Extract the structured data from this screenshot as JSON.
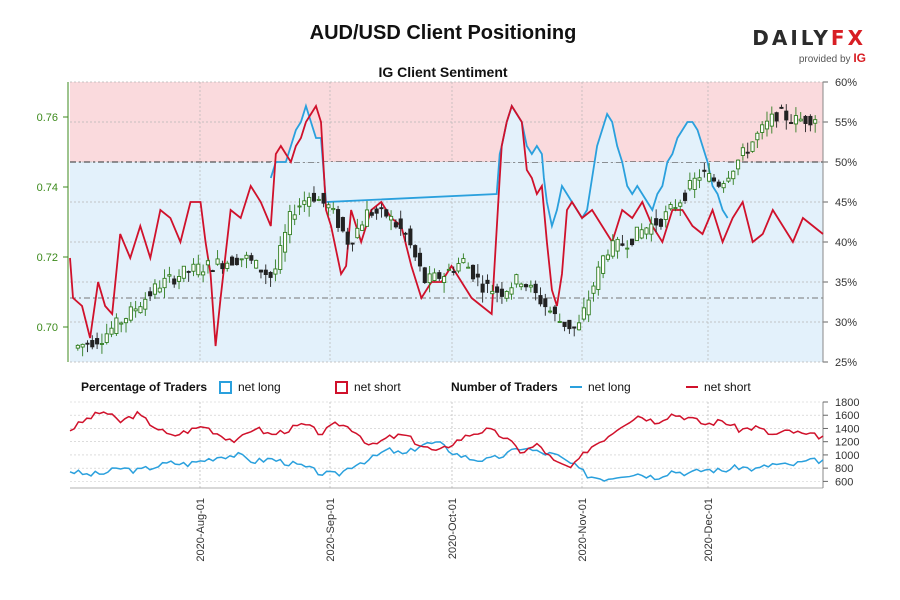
{
  "header": {
    "title": "AUD/USD Client Positioning",
    "subtitle": "IG Client Sentiment",
    "brand_main": "DAILY",
    "brand_fx": "FX",
    "brand_sub": "provided by",
    "brand_ig": "IG"
  },
  "legend": {
    "pct_heading": "Percentage of Traders",
    "num_heading": "Number of Traders",
    "net_long": "net long",
    "net_short": "net short"
  },
  "colors": {
    "net_long": "#2aa0dd",
    "net_short": "#d0112b",
    "short_bg": "#fadadd",
    "long_bg": "#e3f1fb",
    "up_candle": "#2f7d1f",
    "down_candle": "#222222",
    "price_axis": "#3c8a1c"
  },
  "chart_data": [
    {
      "type": "line",
      "title": "IG Client Sentiment",
      "price_axis": {
        "ylim": [
          0.69,
          0.77
        ],
        "ticks": [
          "0.70",
          "0.72",
          "0.74",
          "0.76"
        ]
      },
      "pct_axis": {
        "ylim": [
          25,
          60
        ],
        "ticks": [
          "25%",
          "30%",
          "35%",
          "40%",
          "45%",
          "50%",
          "55%",
          "60%"
        ]
      },
      "x_labels": [
        "2020-Aug-01",
        "2020-Sep-01",
        "2020-Oct-01",
        "2020-Nov-01",
        "2020-Dec-01"
      ],
      "net_short_pct_knots": [
        [
          0,
          38
        ],
        [
          3,
          33
        ],
        [
          12,
          32
        ],
        [
          20,
          28
        ],
        [
          28,
          35
        ],
        [
          35,
          32
        ],
        [
          42,
          31
        ],
        [
          50,
          41
        ],
        [
          60,
          38
        ],
        [
          70,
          42
        ],
        [
          80,
          38
        ],
        [
          90,
          44
        ],
        [
          100,
          43
        ],
        [
          110,
          40
        ],
        [
          120,
          45
        ],
        [
          130,
          45
        ],
        [
          135,
          40
        ],
        [
          140,
          36
        ],
        [
          145,
          27
        ],
        [
          150,
          33
        ],
        [
          160,
          44
        ],
        [
          170,
          43
        ],
        [
          180,
          47
        ],
        [
          190,
          45
        ],
        [
          200,
          42
        ],
        [
          205,
          51
        ],
        [
          210,
          52
        ],
        [
          215,
          51
        ],
        [
          220,
          50
        ],
        [
          225,
          52
        ],
        [
          230,
          53
        ],
        [
          235,
          55
        ],
        [
          240,
          56
        ],
        [
          245,
          57
        ],
        [
          250,
          55
        ],
        [
          255,
          44
        ],
        [
          260,
          42
        ],
        [
          265,
          39
        ],
        [
          270,
          36
        ],
        [
          275,
          37
        ],
        [
          280,
          44
        ],
        [
          285,
          42
        ],
        [
          290,
          40
        ],
        [
          300,
          44
        ],
        [
          310,
          45
        ],
        [
          320,
          43
        ],
        [
          330,
          42
        ],
        [
          340,
          37
        ],
        [
          350,
          33
        ],
        [
          360,
          35
        ],
        [
          370,
          35
        ],
        [
          380,
          37
        ],
        [
          390,
          35
        ],
        [
          400,
          33
        ],
        [
          410,
          32
        ],
        [
          420,
          31
        ],
        [
          428,
          48
        ],
        [
          430,
          52
        ],
        [
          435,
          55
        ],
        [
          440,
          57
        ],
        [
          445,
          56
        ],
        [
          450,
          55
        ],
        [
          455,
          49
        ],
        [
          460,
          48
        ],
        [
          465,
          46
        ],
        [
          470,
          47
        ],
        [
          475,
          40
        ],
        [
          480,
          34
        ],
        [
          485,
          32
        ],
        [
          490,
          36
        ],
        [
          495,
          44
        ],
        [
          500,
          45
        ],
        [
          510,
          43
        ],
        [
          520,
          44
        ],
        [
          530,
          42
        ],
        [
          540,
          40
        ],
        [
          550,
          44
        ],
        [
          560,
          43
        ],
        [
          570,
          45
        ],
        [
          580,
          42
        ],
        [
          590,
          40
        ],
        [
          600,
          44
        ],
        [
          610,
          44
        ],
        [
          620,
          42
        ],
        [
          630,
          41
        ],
        [
          640,
          44
        ],
        [
          650,
          40
        ],
        [
          660,
          43
        ],
        [
          670,
          45
        ],
        [
          680,
          40
        ],
        [
          690,
          41
        ],
        [
          700,
          44
        ],
        [
          710,
          42
        ],
        [
          720,
          40
        ],
        [
          730,
          43
        ],
        [
          740,
          42
        ],
        [
          750,
          41
        ]
      ],
      "net_long_pct_knots": [
        [
          200,
          48
        ],
        [
          205,
          50
        ],
        [
          210,
          50
        ],
        [
          215,
          50
        ],
        [
          220,
          52
        ],
        [
          225,
          54
        ],
        [
          230,
          55
        ],
        [
          235,
          57
        ],
        [
          240,
          55
        ],
        [
          245,
          53
        ],
        [
          250,
          53
        ],
        [
          255,
          45
        ],
        [
          425,
          46
        ],
        [
          428,
          51
        ],
        [
          430,
          52
        ],
        [
          435,
          55
        ],
        [
          440,
          57
        ],
        [
          445,
          56
        ],
        [
          450,
          55
        ],
        [
          455,
          52
        ],
        [
          460,
          51
        ],
        [
          465,
          52
        ],
        [
          470,
          51
        ],
        [
          472,
          48
        ],
        [
          475,
          45
        ],
        [
          480,
          42
        ],
        [
          485,
          44
        ],
        [
          490,
          47
        ],
        [
          495,
          46
        ],
        [
          500,
          45
        ],
        [
          505,
          44
        ],
        [
          510,
          43
        ],
        [
          515,
          44
        ],
        [
          520,
          48
        ],
        [
          525,
          52
        ],
        [
          530,
          54
        ],
        [
          535,
          56
        ],
        [
          540,
          55
        ],
        [
          545,
          52
        ],
        [
          550,
          50
        ],
        [
          555,
          47
        ],
        [
          560,
          46
        ],
        [
          565,
          47
        ],
        [
          570,
          46
        ],
        [
          575,
          45
        ],
        [
          580,
          44
        ],
        [
          585,
          46
        ],
        [
          590,
          47
        ],
        [
          595,
          50
        ],
        [
          600,
          51
        ],
        [
          605,
          53
        ],
        [
          610,
          54
        ],
        [
          615,
          55
        ],
        [
          620,
          55
        ],
        [
          625,
          54
        ],
        [
          630,
          52
        ],
        [
          635,
          50
        ],
        [
          640,
          47
        ],
        [
          645,
          46
        ],
        [
          650,
          44
        ],
        [
          655,
          43
        ]
      ],
      "price_knots": [
        [
          0,
          0.694
        ],
        [
          30,
          0.697
        ],
        [
          60,
          0.704
        ],
        [
          90,
          0.712
        ],
        [
          120,
          0.716
        ],
        [
          150,
          0.718
        ],
        [
          180,
          0.72
        ],
        [
          210,
          0.714
        ],
        [
          230,
          0.733
        ],
        [
          250,
          0.738
        ],
        [
          270,
          0.734
        ],
        [
          290,
          0.724
        ],
        [
          310,
          0.733
        ],
        [
          330,
          0.732
        ],
        [
          350,
          0.726
        ],
        [
          370,
          0.713
        ],
        [
          390,
          0.715
        ],
        [
          410,
          0.719
        ],
        [
          430,
          0.712
        ],
        [
          450,
          0.71
        ],
        [
          470,
          0.714
        ],
        [
          490,
          0.708
        ],
        [
          510,
          0.702
        ],
        [
          530,
          0.699
        ],
        [
          560,
          0.722
        ],
        [
          580,
          0.724
        ],
        [
          600,
          0.728
        ],
        [
          620,
          0.731
        ],
        [
          640,
          0.737
        ],
        [
          660,
          0.744
        ],
        [
          680,
          0.741
        ],
        [
          700,
          0.748
        ],
        [
          720,
          0.755
        ],
        [
          740,
          0.761
        ],
        [
          760,
          0.759
        ],
        [
          780,
          0.76
        ]
      ],
      "series": [
        {
          "name": "net long",
          "type": "line",
          "axis": "pct"
        },
        {
          "name": "net short",
          "type": "line",
          "axis": "pct"
        }
      ]
    },
    {
      "type": "line",
      "title": "Number of Traders",
      "ylim": [
        500,
        1800
      ],
      "ticks": [
        "600",
        "800",
        "1000",
        "1200",
        "1400",
        "1600",
        "1800"
      ],
      "net_short_knots": [
        [
          0,
          1380
        ],
        [
          20,
          1540
        ],
        [
          40,
          1660
        ],
        [
          60,
          1500
        ],
        [
          80,
          1620
        ],
        [
          100,
          1440
        ],
        [
          120,
          1280
        ],
        [
          140,
          1360
        ],
        [
          160,
          1440
        ],
        [
          180,
          1300
        ],
        [
          200,
          1200
        ],
        [
          220,
          1420
        ],
        [
          240,
          1300
        ],
        [
          260,
          1380
        ],
        [
          280,
          1460
        ],
        [
          300,
          1320
        ],
        [
          320,
          1480
        ],
        [
          340,
          1380
        ],
        [
          360,
          1120
        ],
        [
          380,
          1260
        ],
        [
          400,
          1300
        ],
        [
          420,
          1140
        ],
        [
          440,
          1040
        ],
        [
          460,
          1200
        ],
        [
          480,
          1320
        ],
        [
          500,
          1380
        ],
        [
          520,
          1260
        ],
        [
          540,
          1040
        ],
        [
          560,
          1160
        ],
        [
          580,
          880
        ],
        [
          600,
          800
        ],
        [
          620,
          1100
        ],
        [
          640,
          1260
        ],
        [
          660,
          1460
        ],
        [
          680,
          1600
        ],
        [
          700,
          1500
        ],
        [
          720,
          1620
        ],
        [
          740,
          1560
        ],
        [
          760,
          1460
        ],
        [
          780,
          1520
        ],
        [
          800,
          1380
        ],
        [
          820,
          1420
        ],
        [
          840,
          1300
        ],
        [
          860,
          1360
        ],
        [
          880,
          1300
        ],
        [
          900,
          1280
        ]
      ],
      "net_long_knots": [
        [
          0,
          760
        ],
        [
          20,
          700
        ],
        [
          40,
          720
        ],
        [
          60,
          800
        ],
        [
          80,
          760
        ],
        [
          100,
          820
        ],
        [
          120,
          880
        ],
        [
          140,
          860
        ],
        [
          160,
          920
        ],
        [
          180,
          980
        ],
        [
          200,
          1000
        ],
        [
          220,
          900
        ],
        [
          240,
          940
        ],
        [
          260,
          880
        ],
        [
          280,
          820
        ],
        [
          300,
          720
        ],
        [
          320,
          700
        ],
        [
          340,
          860
        ],
        [
          360,
          940
        ],
        [
          380,
          1080
        ],
        [
          400,
          1000
        ],
        [
          420,
          1160
        ],
        [
          440,
          1180
        ],
        [
          460,
          1020
        ],
        [
          480,
          940
        ],
        [
          500,
          920
        ],
        [
          520,
          1000
        ],
        [
          540,
          1120
        ],
        [
          560,
          1040
        ],
        [
          580,
          1000
        ],
        [
          600,
          860
        ],
        [
          620,
          680
        ],
        [
          640,
          640
        ],
        [
          660,
          700
        ],
        [
          680,
          720
        ],
        [
          700,
          660
        ],
        [
          720,
          760
        ],
        [
          740,
          720
        ],
        [
          760,
          780
        ],
        [
          780,
          760
        ],
        [
          800,
          820
        ],
        [
          820,
          780
        ],
        [
          840,
          860
        ],
        [
          860,
          840
        ],
        [
          880,
          900
        ],
        [
          900,
          920
        ]
      ],
      "series": [
        {
          "name": "net long",
          "type": "line"
        },
        {
          "name": "net short",
          "type": "line"
        }
      ]
    }
  ]
}
